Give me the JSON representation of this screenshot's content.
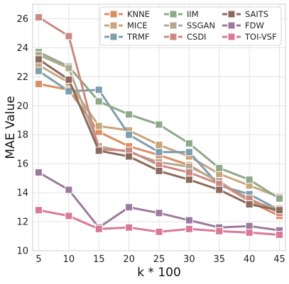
{
  "chart_data": {
    "type": "line",
    "xlabel": "k * 100",
    "ylabel": "MAE Value",
    "x": [
      5,
      10,
      15,
      20,
      25,
      30,
      35,
      40,
      45
    ],
    "xlim": [
      4,
      46
    ],
    "ylim": [
      10,
      27
    ],
    "yticks": [
      10,
      12,
      14,
      16,
      18,
      20,
      22,
      24,
      26
    ],
    "grid": true,
    "legend_position": "top-right",
    "legend_columns": 3,
    "series": [
      {
        "name": "KNNE",
        "color": "#d98e63",
        "values": [
          21.5,
          21.1,
          18.2,
          17.2,
          16.6,
          15.9,
          14.7,
          13.4,
          12.4
        ]
      },
      {
        "name": "MICE",
        "color": "#c9a57e",
        "values": [
          22.8,
          21.6,
          18.6,
          18.3,
          17.3,
          16.5,
          15.3,
          14.5,
          13.7
        ]
      },
      {
        "name": "TRMF",
        "color": "#7f9eab",
        "values": [
          22.4,
          21.0,
          21.1,
          18.0,
          16.8,
          16.8,
          14.5,
          13.9,
          12.8
        ]
      },
      {
        "name": "IIM",
        "color": "#8fa88a",
        "values": [
          23.7,
          22.7,
          20.3,
          19.4,
          18.7,
          17.4,
          15.7,
          14.9,
          13.6
        ]
      },
      {
        "name": "SSGAN",
        "color": "#b5a892",
        "values": [
          23.5,
          22.6,
          17.2,
          16.8,
          16.1,
          15.8,
          14.8,
          13.4,
          12.9
        ]
      },
      {
        "name": "CSDI",
        "color": "#c98a82",
        "values": [
          26.1,
          24.8,
          17.0,
          16.9,
          15.9,
          15.4,
          14.6,
          13.6,
          12.6
        ]
      },
      {
        "name": "SAITS",
        "color": "#8c6a5d",
        "values": [
          23.2,
          21.8,
          16.9,
          16.5,
          15.5,
          14.9,
          14.2,
          13.2,
          12.8
        ]
      },
      {
        "name": "FDW",
        "color": "#9c7a9d",
        "values": [
          15.4,
          14.2,
          11.6,
          13.0,
          12.6,
          12.1,
          11.6,
          11.7,
          11.4
        ]
      },
      {
        "name": "TOI-VSF",
        "color": "#d87a97",
        "values": [
          12.8,
          12.4,
          11.5,
          11.6,
          11.3,
          11.5,
          11.35,
          11.25,
          11.1
        ]
      }
    ]
  }
}
